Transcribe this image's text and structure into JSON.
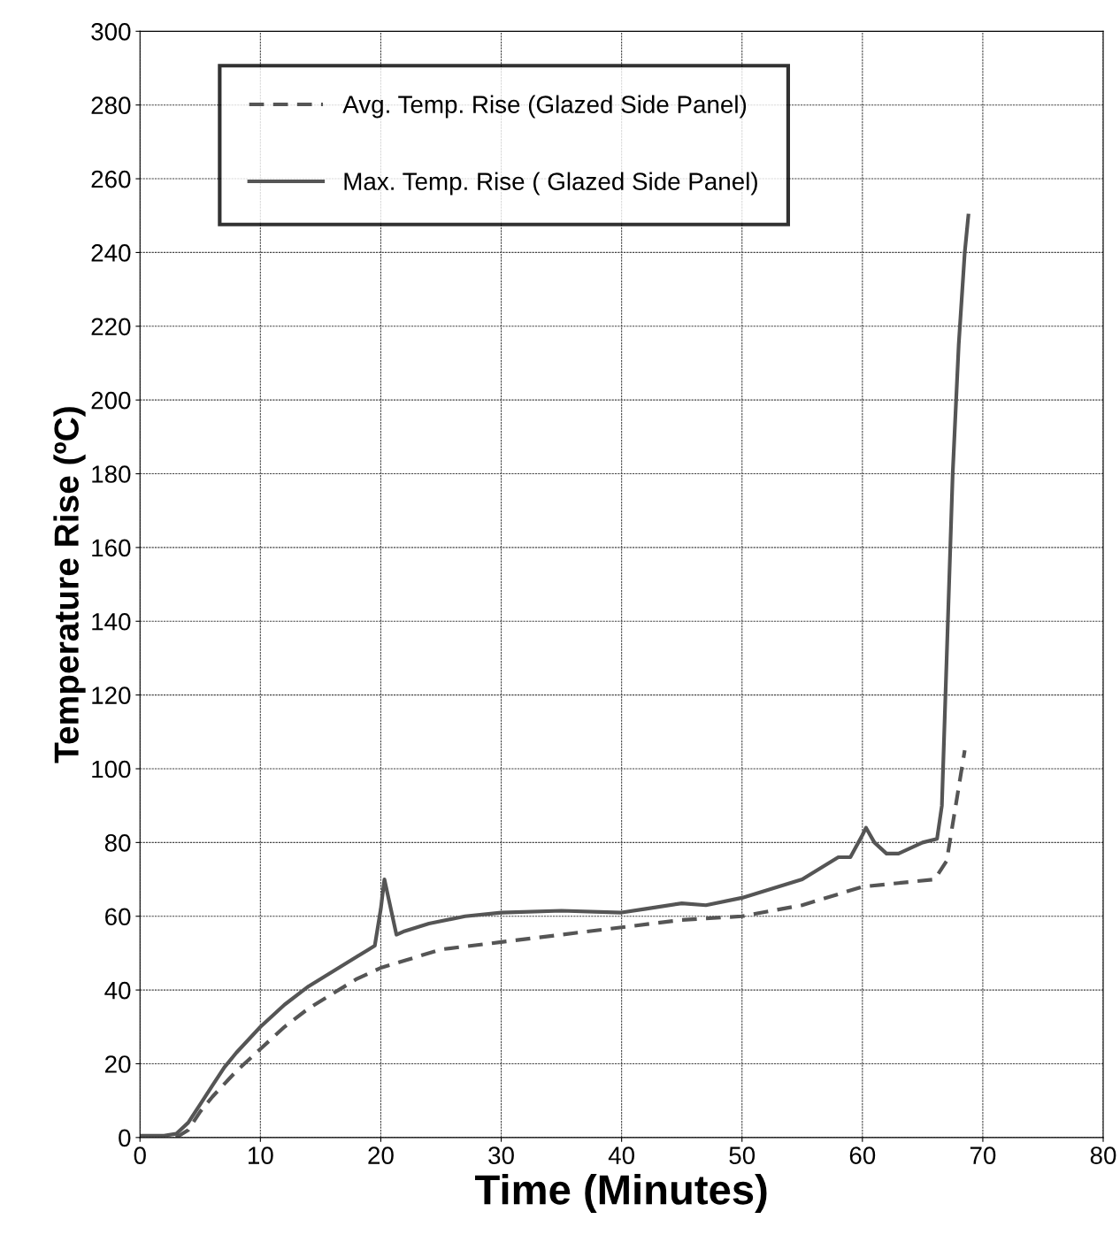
{
  "chart_data": {
    "type": "line",
    "xlabel": "Time (Minutes)",
    "ylabel": "Temperature Rise (ºC)",
    "xlim": [
      0,
      80
    ],
    "xticks": [
      0,
      10,
      20,
      30,
      40,
      50,
      60,
      70,
      80
    ],
    "ylim": [
      0,
      300
    ],
    "yticks": [
      0,
      20,
      40,
      60,
      80,
      100,
      120,
      140,
      160,
      180,
      200,
      220,
      240,
      260,
      280,
      300
    ],
    "grid": true,
    "legend": "top left",
    "marker": "none",
    "series": [
      {
        "name": "Avg. Temp. Rise (Glazed Side Panel)",
        "color": "#555555",
        "line_style": "dashed",
        "x": [
          3,
          4,
          5,
          6,
          8,
          10,
          12,
          14,
          16,
          18,
          20,
          22,
          25,
          30,
          35,
          40,
          45,
          50,
          55,
          58,
          60,
          63,
          66,
          67,
          67.5,
          68,
          68.5
        ],
        "values": [
          0,
          2,
          7,
          11,
          18,
          24,
          30,
          35,
          39,
          43,
          46,
          48,
          51,
          53,
          55,
          57,
          59,
          60,
          63,
          66,
          68,
          69,
          70,
          75,
          85,
          95,
          105
        ]
      },
      {
        "name": "Max. Temp. Rise ( Glazed Side Panel)",
        "color": "#555555",
        "line_style": "solid",
        "x": [
          0,
          2,
          3,
          4,
          5,
          6,
          7,
          8,
          10,
          12,
          14,
          16,
          18,
          19,
          19.5,
          20,
          20.3,
          20.7,
          21.3,
          22,
          24,
          27,
          30,
          35,
          40,
          42,
          45,
          47,
          50,
          55,
          58,
          59,
          60,
          60.3,
          61,
          62,
          63,
          65,
          66.2,
          66.6,
          67,
          67.5,
          68,
          68.5,
          68.8
        ],
        "values": [
          0.5,
          0.5,
          1,
          4,
          9,
          14,
          19,
          23,
          30,
          36,
          41,
          45,
          49,
          51,
          52,
          62,
          70,
          64,
          55,
          56,
          58,
          60,
          61,
          61.5,
          61,
          62,
          63.5,
          63,
          65,
          70,
          76,
          76,
          82,
          84,
          80,
          77,
          77,
          80,
          81,
          90,
          130,
          180,
          215,
          240,
          250
        ]
      }
    ]
  }
}
